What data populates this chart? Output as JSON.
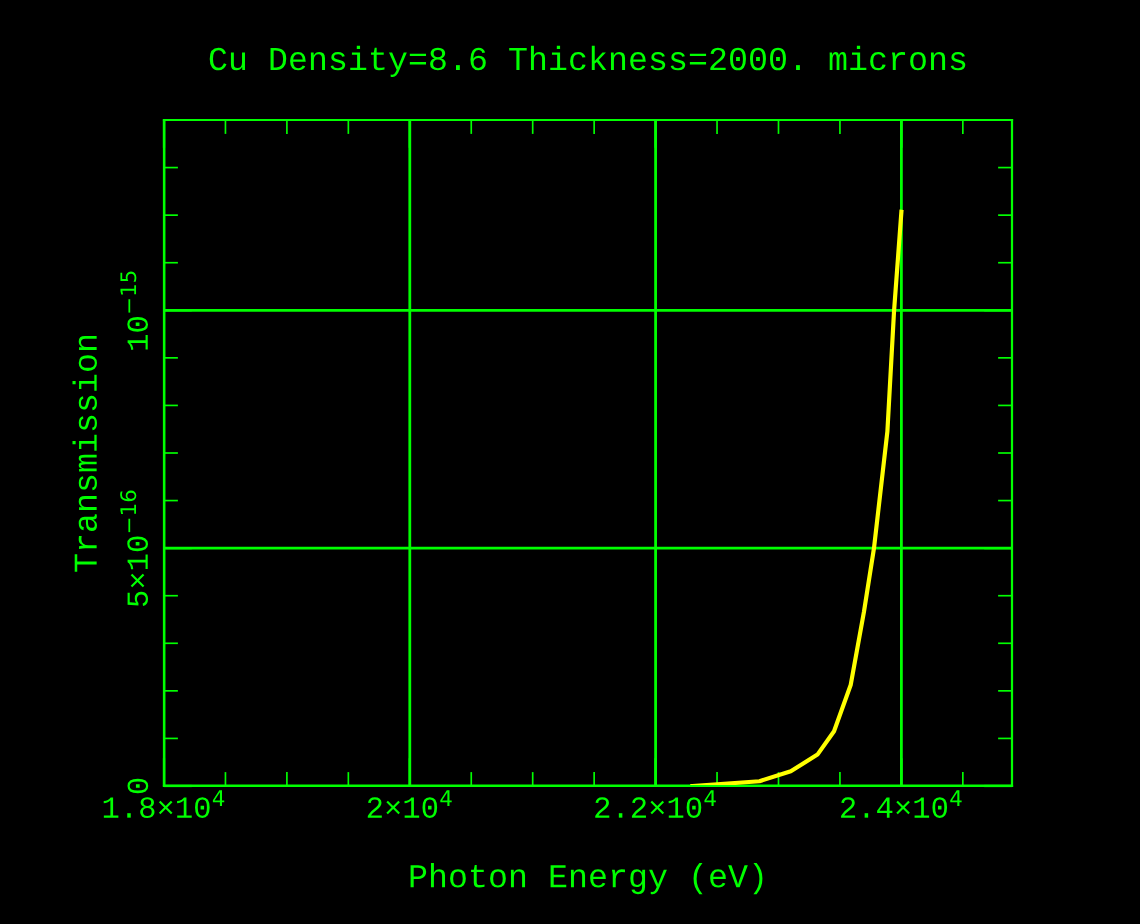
{
  "chart_data": {
    "type": "line",
    "title": "Cu Density=8.6 Thickness=2000. microns",
    "xlabel": "Photon Energy (eV)",
    "ylabel": "Transmission",
    "x": [
      22300,
      22845,
      23100,
      23317,
      23452,
      23588,
      23696,
      23777,
      23886,
      23940,
      24000
    ],
    "series": [
      {
        "color": "#ffff00",
        "values": [
          0,
          1e-17,
          3.1e-17,
          6.6e-17,
          1.15e-16,
          2.13e-16,
          3.67e-16,
          5e-16,
          7.45e-16,
          9.97e-16,
          1.207e-15
        ]
      }
    ],
    "xlim": [
      18000,
      24900
    ],
    "ylim": [
      0,
      1.4e-15
    ],
    "xticks": [
      {
        "value": 18000,
        "label": "1.8×10$^{4}$"
      },
      {
        "value": 20000,
        "label": "2×10$^{4}$"
      },
      {
        "value": 22000,
        "label": "2.2×10$^{4}$"
      },
      {
        "value": 24000,
        "label": "2.4×10$^{4}$"
      }
    ],
    "yticks": [
      0,
      {
        "value": 5e-16,
        "label": "5×10$^{−16}$"
      },
      {
        "value": 1e-15,
        "label": "10$^{−15}$"
      }
    ],
    "grid": true,
    "legend": false,
    "marker": "none",
    "line_style": "solid"
  }
}
